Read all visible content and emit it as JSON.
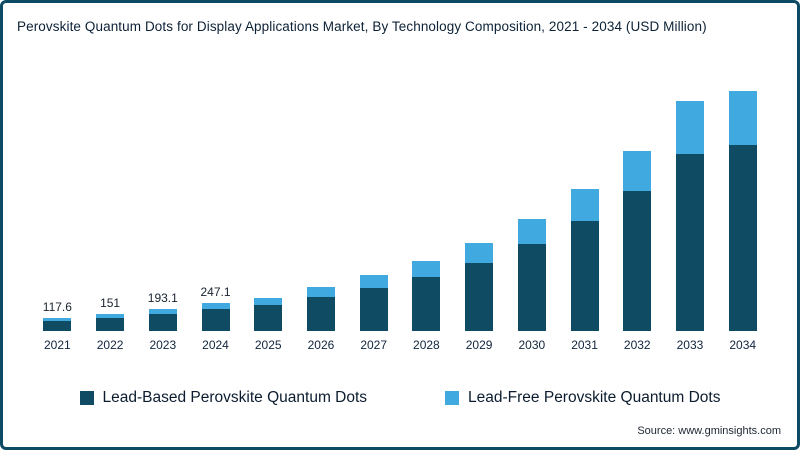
{
  "header": {
    "title": "Perovskite Quantum Dots for Display Applications Market, By Technology Composition, 2021 - 2034 (USD Million)"
  },
  "legend": [
    {
      "label": "Lead-Based Perovskite Quantum Dots",
      "color": "#0f4c64"
    },
    {
      "label": "Lead-Free Perovskite Quantum Dots",
      "color": "#3fa9e0"
    }
  ],
  "source": "Source: www.gminsights.com",
  "colors": {
    "frame_border": "#0d4a63",
    "lead_based": "#0f4c64",
    "lead_free": "#3fa9e0",
    "text": "#0c2136"
  },
  "chart_data": {
    "type": "bar",
    "stacked": true,
    "title": "Perovskite Quantum Dots for Display Applications Market, By Technology Composition, 2021 - 2034 (USD Million)",
    "categories": [
      "2021",
      "2022",
      "2023",
      "2024",
      "2025",
      "2026",
      "2027",
      "2028",
      "2029",
      "2030",
      "2031",
      "2032",
      "2033",
      "2034"
    ],
    "series": [
      {
        "name": "Lead-Based Perovskite Quantum Dots",
        "color": "#0f4c64",
        "values": [
          92,
          118,
          151,
          193,
          227,
          300,
          382,
          480,
          600,
          765,
          970,
          1230,
          1560,
          1640
        ]
      },
      {
        "name": "Lead-Free Perovskite Quantum Dots",
        "color": "#3fa9e0",
        "values": [
          25.6,
          33,
          42.1,
          54.1,
          63,
          85,
          108,
          135,
          175,
          220,
          280,
          355,
          465,
          470
        ]
      }
    ],
    "totals": [
      117.6,
      151,
      193.1,
      247.1,
      290,
      385,
      490,
      615,
      775,
      985,
      1250,
      1585,
      2025,
      2110
    ],
    "data_labels": [
      "117.6",
      "151",
      "193.1",
      "247.1",
      "",
      "",
      "",
      "",
      "",
      "",
      "",
      "",
      "",
      ""
    ],
    "xlabel": "",
    "ylabel": "USD Million",
    "ylim": [
      0,
      2200
    ],
    "grid": false,
    "legend_position": "bottom"
  }
}
